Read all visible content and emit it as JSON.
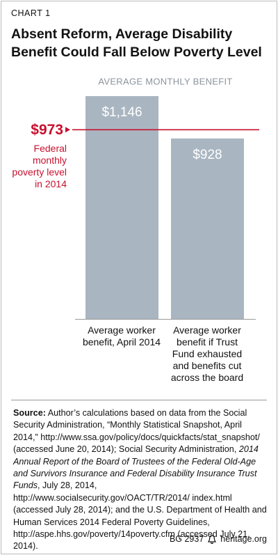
{
  "chart_data": {
    "type": "bar",
    "label": "CHART 1",
    "title": "Absent Reform, Average Disability Benefit Could Fall Below Poverty Level",
    "subtitle": "AVERAGE MONTHLY BENEFIT",
    "categories": [
      "Average worker benefit, April 2014",
      "Average worker benefit if Trust Fund exhausted and benefits cut across the board"
    ],
    "values": [
      1146,
      928
    ],
    "value_labels": [
      "$1,146",
      "$928"
    ],
    "color": "#a9b6c1",
    "reference_line": {
      "value": 973,
      "label": "$973",
      "note": "Federal monthly poverty level in 2014",
      "color": "#c8102e"
    },
    "source": {
      "label": "Source:",
      "parts": [
        {
          "text": " Author’s calculations based on data from the Social Security Administration, “Monthly Statistical Snapshot, April 2014,” http://www.ssa.gov/policy/docs/quickfacts/stat_snapshot/ (accessed June 20, 2014); Social Security Administration, ",
          "italic": false
        },
        {
          "text": "2014 Annual Report of the Board of Trustees of the Federal Old-Age and Survivors Insurance and Federal Disability Insurance Trust Funds",
          "italic": true
        },
        {
          "text": ", July 28, 2014, http://www.socialsecurity.gov/OACT/TR/2014/ index.html (accessed July 28, 2014); and the U.S. Department of Health and Human Services 2014 Federal Poverty Guidelines, http://aspe.hhs.gov/poverty/14poverty.cfm (accessed July 21, 2014).",
          "italic": false
        }
      ]
    },
    "footer": {
      "id": "BG 2937",
      "site": "heritage.org"
    }
  }
}
